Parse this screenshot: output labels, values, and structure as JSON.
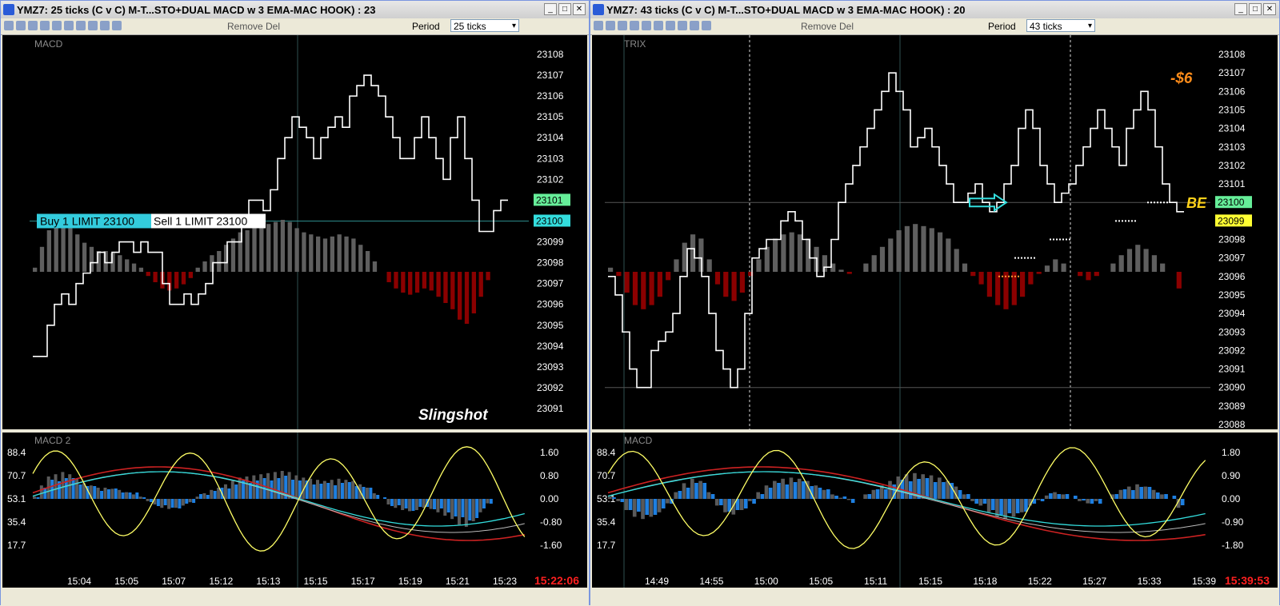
{
  "left": {
    "title": "YMZ7: 25 ticks (C v C)  M-T...STO+DUAL MACD w 3 EMA-MAC HOOK) : 23",
    "toolbar": {
      "remove_label": "Remove Del",
      "period_label": "Period",
      "period_value": "25 ticks"
    },
    "top_pane_label": "MACD",
    "bottom_pane_label": "MACD 2",
    "price_axis": [
      "23108",
      "23107",
      "23106",
      "23105",
      "23104",
      "23103",
      "23102",
      "23101",
      "23100",
      "23099",
      "23098",
      "23097",
      "23096",
      "23095",
      "23094",
      "23093",
      "23092",
      "23091"
    ],
    "price_tag_green": "23101",
    "price_tag_cyan": "23100",
    "order_buy": "Buy 1 LIMIT 23100",
    "order_sell": "Sell 1 LIMIT 23100",
    "annotation": "Slingshot",
    "osc_left_axis": [
      "88.4",
      "70.7",
      "53.1",
      "35.4",
      "17.7"
    ],
    "osc_right_axis": [
      "1.60",
      "0.80",
      "0.00",
      "-0.80",
      "-1.60"
    ],
    "time_axis": [
      "15:04",
      "15:05",
      "15:07",
      "15:12",
      "15:13",
      "15:15",
      "15:17",
      "15:19",
      "15:21",
      "15:23"
    ],
    "clock": "15:22:06"
  },
  "right": {
    "title": "YMZ7: 43 ticks (C v C)  M-T...STO+DUAL MACD w 3 EMA-MAC HOOK) : 20",
    "toolbar": {
      "remove_label": "Remove Del",
      "period_label": "Period",
      "period_value": "43 ticks"
    },
    "top_pane_label": "TRIX",
    "bottom_pane_label": "MACD",
    "price_axis": [
      "23108",
      "23107",
      "23106",
      "23105",
      "23104",
      "23103",
      "23102",
      "23101",
      "23100",
      "23099",
      "23098",
      "23097",
      "23096",
      "23095",
      "23094",
      "23093",
      "23092",
      "23091",
      "23090",
      "23089",
      "23088"
    ],
    "price_tag_green": "23100",
    "price_tag_yellow": "23099",
    "pnl": "-$6",
    "be_label": "BE",
    "osc_left_axis": [
      "88.4",
      "70.7",
      "53.1",
      "35.4",
      "17.7"
    ],
    "osc_right_axis": [
      "1.80",
      "0.90",
      "0.00",
      "-0.90",
      "-1.80"
    ],
    "time_axis": [
      "14:49",
      "14:55",
      "15:00",
      "15:05",
      "15:11",
      "15:15",
      "15:18",
      "15:22",
      "15:27",
      "15:33",
      "15:39"
    ],
    "clock": "15:39:53"
  },
  "colors": {
    "bg": "#000000",
    "price": "#ffffff",
    "hist_up": "#5f5f5f",
    "hist_down": "#8b0000",
    "osc_blue": "#1e7fe0",
    "osc_yellow": "#ffff66",
    "osc_red": "#cc2222",
    "osc_cyan": "#33dddd",
    "clock": "#ff2020"
  },
  "chart_data": [
    {
      "type": "line",
      "title": "",
      "name": "left-price",
      "ylim": [
        23091,
        23108
      ],
      "values": [
        23093.5,
        23093.5,
        23095,
        23096,
        23096.5,
        23096,
        23097,
        23097.5,
        23098,
        23098.5,
        23098,
        23098.5,
        23099,
        23099,
        23098.5,
        23099,
        23098.5,
        23098.5,
        23097,
        23096,
        23096,
        23096.5,
        23096,
        23096.5,
        23097,
        23098,
        23098,
        23099,
        23099,
        23100,
        23101,
        23101,
        23100.5,
        23101.5,
        23103,
        23104,
        23105,
        23104.5,
        23104,
        23103,
        23104,
        23104.5,
        23105,
        23104.5,
        23106,
        23106.5,
        23107,
        23106.5,
        23106,
        23105,
        23104,
        23103,
        23103,
        23104,
        23105,
        23104,
        23103,
        23102,
        23104,
        23105,
        23103,
        23101,
        23099.5,
        23099.5,
        23100.5,
        23101
      ]
    },
    {
      "type": "bar",
      "name": "left-macd-hist",
      "values": [
        0.2,
        1.2,
        2.0,
        2.2,
        2.4,
        2.2,
        1.8,
        1.4,
        1.2,
        1.0,
        1.0,
        0.9,
        0.8,
        0.6,
        0.4,
        0.2,
        -0.2,
        -0.5,
        -0.8,
        -0.9,
        -0.8,
        -0.6,
        -0.3,
        0.2,
        0.5,
        0.8,
        1.0,
        1.3,
        1.6,
        1.9,
        2.0,
        2.1,
        2.2,
        2.3,
        2.4,
        2.5,
        2.4,
        2.1,
        1.9,
        1.8,
        1.7,
        1.6,
        1.7,
        1.8,
        1.7,
        1.6,
        1.3,
        1.0,
        0.5,
        0.0,
        -0.5,
        -0.8,
        -1.0,
        -1.1,
        -1.0,
        -0.8,
        -0.9,
        -1.2,
        -1.5,
        -1.8,
        -2.3,
        -2.5,
        -2.0,
        -1.2,
        -0.4
      ]
    },
    {
      "type": "line",
      "name": "right-price",
      "ylim": [
        23088,
        23108
      ],
      "values": [
        23096,
        23095,
        23093,
        23091,
        23090,
        23090,
        23092,
        23092.5,
        23093,
        23094,
        23096,
        23097.5,
        23097,
        23096,
        23094,
        23092,
        23091,
        23090,
        23091,
        23094,
        23097,
        23097.5,
        23098,
        23098,
        23099,
        23099.5,
        23099,
        23098,
        23097,
        23096,
        23096.5,
        23098,
        23100,
        23101,
        23102,
        23103,
        23104,
        23105,
        23106,
        23107,
        23106,
        23105,
        23103,
        23103.5,
        23104,
        23103,
        23102,
        23101,
        23100,
        23100,
        23100.5,
        23101,
        23100,
        23099.5,
        23100,
        23101,
        23102,
        23104,
        23105,
        23104,
        23102,
        23101,
        23100,
        23100.5,
        23101,
        23102,
        23103,
        23104,
        23105,
        23104,
        23103,
        23102,
        23104,
        23105,
        23106,
        23105,
        23103,
        23101,
        23100,
        23099.5
      ]
    },
    {
      "type": "bar",
      "name": "right-trix-hist",
      "values": [
        0.2,
        -0.2,
        -1.0,
        -1.6,
        -1.8,
        -1.6,
        -1.2,
        -0.4,
        0.6,
        1.4,
        1.8,
        1.6,
        0.6,
        -0.6,
        -1.2,
        -1.4,
        -1.0,
        -0.2,
        0.6,
        1.2,
        1.6,
        1.8,
        1.9,
        1.8,
        1.6,
        1.2,
        0.8,
        0.4,
        0.1,
        -0.1,
        0.0,
        0.4,
        0.8,
        1.2,
        1.6,
        2.0,
        2.2,
        2.3,
        2.2,
        2.1,
        1.9,
        1.6,
        1.1,
        0.4,
        -0.2,
        -0.6,
        -1.2,
        -1.6,
        -1.8,
        -1.6,
        -1.2,
        -0.6,
        -0.1,
        0.3,
        0.6,
        0.4,
        0.0,
        -0.2,
        -0.4,
        -0.2,
        0.0,
        0.4,
        0.8,
        1.1,
        1.3,
        1.1,
        0.8,
        0.4,
        0.0,
        -0.8
      ]
    }
  ]
}
